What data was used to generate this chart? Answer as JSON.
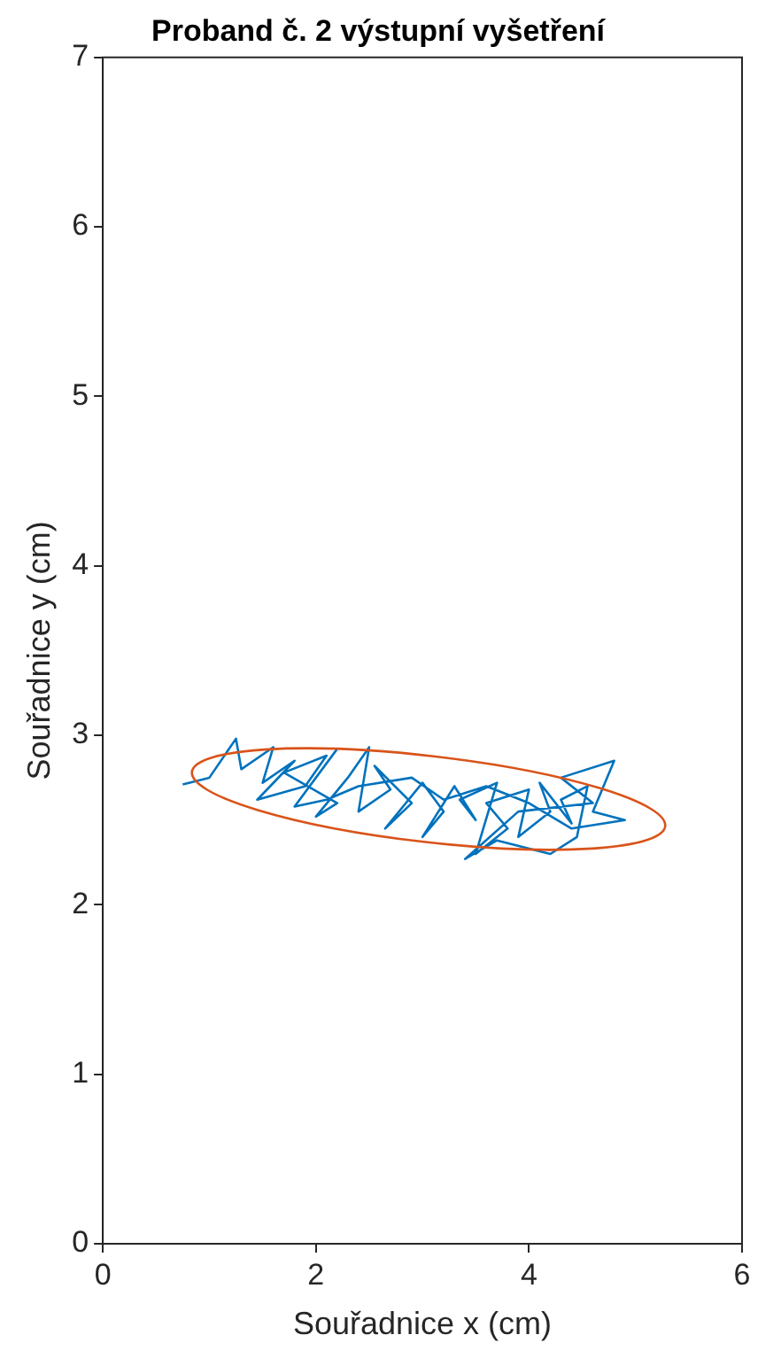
{
  "chart_data": {
    "type": "line",
    "title": "Proband č. 2 výstupní vyšetření",
    "xlabel": "Souřadnice x (cm)",
    "ylabel": "Souřadnice y (cm)",
    "xlim": [
      0,
      6
    ],
    "xticks": [
      0,
      2,
      4,
      6
    ],
    "ylim": [
      0,
      7
    ],
    "yticks": [
      0,
      1,
      2,
      3,
      4,
      5,
      6,
      7
    ],
    "grid": false,
    "legend": false,
    "marker": "none",
    "line_style": "solid",
    "series": [
      {
        "color": "#0072bd",
        "x": [
          0.75,
          1.0,
          1.25,
          1.3,
          1.6,
          1.5,
          1.8,
          1.45,
          1.9,
          2.1,
          1.7,
          2.2,
          2.0,
          2.3,
          2.5,
          2.4,
          2.7,
          2.55,
          2.9,
          2.65,
          3.0,
          3.2,
          3.0,
          3.3,
          3.5,
          3.35,
          3.7,
          3.5,
          3.8,
          3.6,
          4.0,
          3.9,
          4.2,
          4.1,
          4.4,
          4.3,
          4.55,
          4.45,
          4.2,
          3.7,
          3.4,
          3.9,
          4.6,
          4.3,
          4.8,
          4.6,
          4.9,
          4.4,
          4.0,
          3.6,
          3.2,
          2.9,
          2.4,
          2.1,
          1.8,
          2.2
        ],
        "values": [
          2.71,
          2.75,
          2.98,
          2.8,
          2.93,
          2.72,
          2.85,
          2.62,
          2.7,
          2.88,
          2.78,
          2.6,
          2.52,
          2.75,
          2.93,
          2.55,
          2.68,
          2.82,
          2.6,
          2.45,
          2.72,
          2.55,
          2.4,
          2.7,
          2.5,
          2.62,
          2.72,
          2.3,
          2.45,
          2.6,
          2.68,
          2.4,
          2.55,
          2.72,
          2.48,
          2.62,
          2.7,
          2.4,
          2.3,
          2.38,
          2.27,
          2.55,
          2.6,
          2.75,
          2.85,
          2.55,
          2.5,
          2.45,
          2.6,
          2.7,
          2.62,
          2.75,
          2.7,
          2.62,
          2.58,
          2.92
        ]
      }
    ]
  }
}
